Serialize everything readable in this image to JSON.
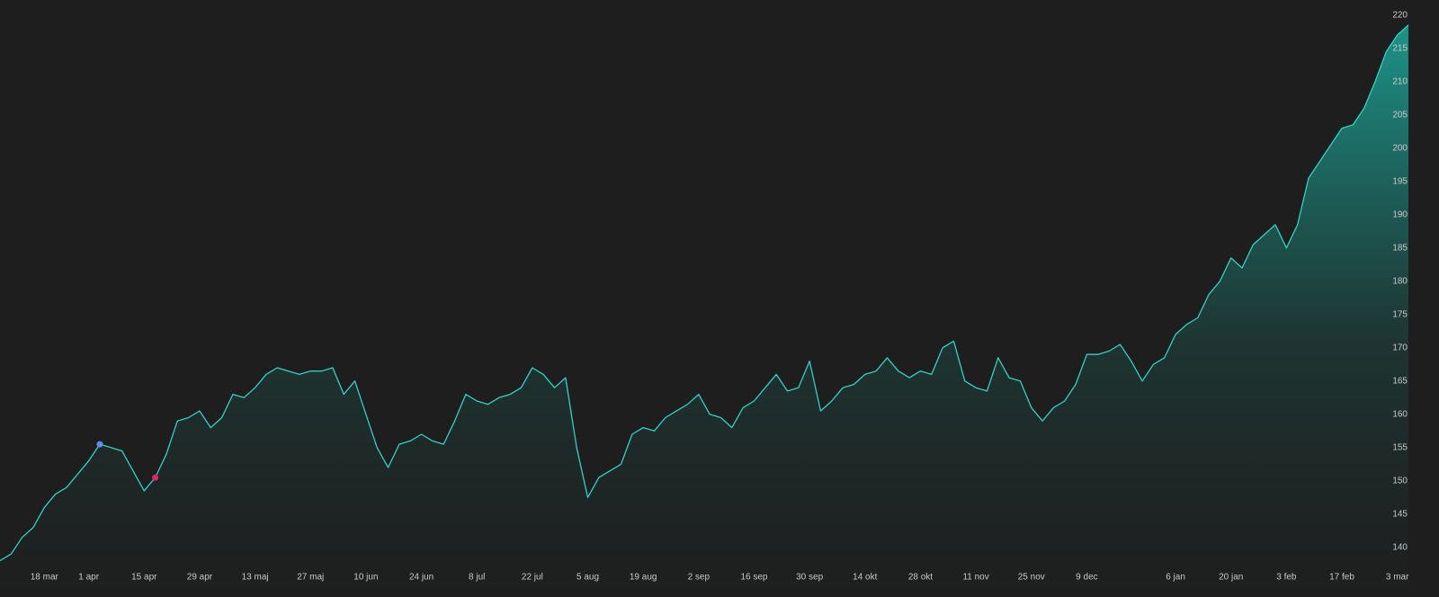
{
  "chart_data": {
    "type": "area",
    "categories": [
      null,
      null,
      null,
      null,
      "18 mar",
      null,
      null,
      null,
      "1 apr",
      null,
      null,
      null,
      null,
      "15 apr",
      null,
      null,
      null,
      null,
      "29 apr",
      null,
      null,
      null,
      null,
      "13 maj",
      null,
      null,
      null,
      null,
      "27 maj",
      null,
      null,
      null,
      null,
      "10 jun",
      null,
      null,
      null,
      null,
      "24 jun",
      null,
      null,
      null,
      null,
      "8 jul",
      null,
      null,
      null,
      null,
      "22 jul",
      null,
      null,
      null,
      null,
      "5 aug",
      null,
      null,
      null,
      null,
      "19 aug",
      null,
      null,
      null,
      null,
      "2 sep",
      null,
      null,
      null,
      null,
      "16 sep",
      null,
      null,
      null,
      null,
      "30 sep",
      null,
      null,
      null,
      null,
      "14 okt",
      null,
      null,
      null,
      null,
      "28 okt",
      null,
      null,
      null,
      null,
      "11 nov",
      null,
      null,
      null,
      null,
      "25 nov",
      null,
      null,
      null,
      null,
      "9 dec",
      null,
      null,
      null,
      null,
      null,
      null,
      null,
      "6 jan",
      null,
      null,
      null,
      null,
      "20 jan",
      null,
      null,
      null,
      null,
      "3 feb",
      null,
      null,
      null,
      null,
      "17 feb",
      null,
      null,
      null,
      null,
      "3 mar",
      null
    ],
    "series": [
      {
        "color": "#2fd3c3",
        "values": [
          138,
          139,
          141.5,
          143,
          146,
          148,
          149,
          151,
          153,
          155.5,
          155,
          154.5,
          151.5,
          148.5,
          150.5,
          154,
          159,
          159.5,
          160.5,
          158,
          159.5,
          163,
          162.5,
          164,
          166,
          167,
          166.5,
          166,
          166.5,
          166.5,
          167,
          163,
          165,
          160,
          155,
          152,
          155.5,
          156,
          157,
          156,
          155.5,
          159,
          163,
          162,
          161.5,
          162.5,
          163,
          164,
          167,
          166,
          164,
          165.5,
          155,
          147.5,
          150.5,
          151.5,
          152.5,
          157,
          158,
          157.5,
          159.5,
          160.5,
          161.5,
          163,
          160,
          159.5,
          158,
          161,
          162,
          164,
          166,
          163.5,
          164,
          168,
          160.5,
          162,
          164,
          164.5,
          166,
          166.5,
          168.5,
          166.5,
          165.5,
          166.5,
          166,
          170,
          171,
          165,
          164,
          163.5,
          168.5,
          165.5,
          165,
          161,
          159,
          161,
          162,
          164.5,
          169,
          169,
          169.5,
          170.5,
          168,
          165,
          167.5,
          168.5,
          172,
          173.5,
          174.5,
          178,
          180,
          183.5,
          182,
          185.5,
          187,
          188.5,
          185,
          188.5,
          195.5,
          198,
          200.5,
          203,
          203.5,
          206,
          210,
          214.5,
          217,
          218.5
        ]
      }
    ],
    "markers": [
      {
        "color": "#5b8def",
        "values": [
          null,
          null,
          null,
          null,
          null,
          null,
          null,
          null,
          null,
          155.5,
          null,
          null,
          null,
          null,
          null,
          null,
          null,
          null,
          null,
          null,
          null,
          null,
          null,
          null,
          null,
          null,
          null,
          null,
          null,
          null,
          null,
          null,
          null,
          null,
          null,
          null,
          null,
          null,
          null,
          null,
          null,
          null,
          null,
          null,
          null,
          null,
          null,
          null,
          null,
          null,
          null,
          null,
          null,
          null,
          null,
          null,
          null,
          null,
          null,
          null,
          null,
          null,
          null,
          null,
          null,
          null,
          null,
          null,
          null,
          null,
          null,
          null,
          null,
          null,
          null,
          null,
          null,
          null,
          null,
          null,
          null,
          null,
          null,
          null,
          null,
          null,
          null,
          null,
          null,
          null,
          null,
          null,
          null,
          null,
          null,
          null,
          null,
          null,
          null,
          null,
          null,
          null,
          null,
          null,
          null,
          null,
          null,
          null,
          null,
          null,
          null,
          null,
          null,
          null,
          null,
          null,
          null,
          null,
          null,
          null,
          null,
          null,
          null,
          null,
          null,
          null,
          null,
          null
        ]
      },
      {
        "color": "#e0245e",
        "values": [
          null,
          null,
          null,
          null,
          null,
          null,
          null,
          null,
          null,
          null,
          null,
          null,
          null,
          null,
          150.5,
          null,
          null,
          null,
          null,
          null,
          null,
          null,
          null,
          null,
          null,
          null,
          null,
          null,
          null,
          null,
          null,
          null,
          null,
          null,
          null,
          null,
          null,
          null,
          null,
          null,
          null,
          null,
          null,
          null,
          null,
          null,
          null,
          null,
          null,
          null,
          null,
          null,
          null,
          null,
          null,
          null,
          null,
          null,
          null,
          null,
          null,
          null,
          null,
          null,
          null,
          null,
          null,
          null,
          null,
          null,
          null,
          null,
          null,
          null,
          null,
          null,
          null,
          null,
          null,
          null,
          null,
          null,
          null,
          null,
          null,
          null,
          null,
          null,
          null,
          null,
          null,
          null,
          null,
          null,
          null,
          null,
          null,
          null,
          null,
          null,
          null,
          null,
          null,
          null,
          null,
          null,
          null,
          null,
          null,
          null,
          null,
          null,
          null,
          null,
          null,
          null,
          null,
          null,
          null,
          null,
          null,
          null,
          null,
          null,
          null,
          null,
          null,
          null
        ]
      }
    ],
    "ylim": [
      137,
      222
    ],
    "yticks": [
      140,
      145,
      150,
      155,
      160,
      165,
      170,
      175,
      180,
      185,
      190,
      195,
      200,
      205,
      210,
      215,
      220
    ],
    "grid": false
  }
}
